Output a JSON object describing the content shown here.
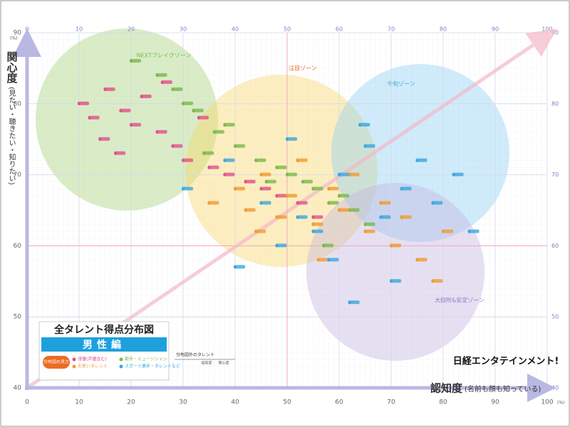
{
  "chart_data": {
    "type": "scatter",
    "title": "全タレント得点分布図",
    "subtitle": "男性編",
    "legend_title": "分布図の見方",
    "x_label": "認知度",
    "x_label_note": "(名前も顔も知っている)",
    "y_label": "関心度",
    "y_label_note": "(見たい・聴きたい・知りたい)",
    "unit": "(%)",
    "logo": "日経エンタテインメント!",
    "table_title": "分布図外のタレント",
    "table_columns": [
      "認知度",
      "関心度"
    ],
    "zones": [
      "NEXTブレイクゾーン",
      "注目ゾーン",
      "今旬ゾーン",
      "大御所&安定ゾーン"
    ],
    "xlim": [
      0,
      100
    ],
    "xticks": [
      0,
      10,
      20,
      30,
      40,
      50,
      60,
      70,
      80,
      90,
      100
    ],
    "ylim": [
      40,
      90
    ],
    "yticks": [
      40,
      50,
      60,
      70,
      80,
      90
    ],
    "grid": true,
    "series": [
      {
        "name": "俳優(声優含む)",
        "color": "#e0508a",
        "x": [
          10,
          12,
          15,
          18,
          20,
          22,
          25,
          14,
          17,
          28,
          30,
          35,
          38,
          42,
          45,
          48,
          52,
          55,
          33,
          26
        ],
        "values": [
          80,
          78,
          82,
          79,
          77,
          81,
          76,
          75,
          73,
          74,
          72,
          71,
          70,
          69,
          68,
          67,
          66,
          64,
          78,
          83
        ]
      },
      {
        "name": "歌手・ミュージシャン",
        "color": "#7ab84a",
        "x": [
          20,
          25,
          30,
          32,
          36,
          40,
          44,
          48,
          50,
          55,
          58,
          60,
          62,
          65,
          28,
          38,
          46,
          53,
          57,
          34
        ],
        "values": [
          86,
          84,
          80,
          79,
          76,
          74,
          72,
          71,
          70,
          68,
          66,
          67,
          65,
          63,
          82,
          77,
          69,
          69,
          60,
          73
        ]
      },
      {
        "name": "お笑いタレント",
        "color": "#f29a2e",
        "x": [
          35,
          40,
          42,
          45,
          48,
          50,
          52,
          55,
          58,
          60,
          62,
          65,
          68,
          70,
          72,
          75,
          78,
          80,
          44,
          56
        ],
        "values": [
          66,
          68,
          65,
          70,
          64,
          67,
          72,
          63,
          68,
          65,
          70,
          62,
          66,
          60,
          64,
          58,
          55,
          62,
          62,
          58
        ]
      },
      {
        "name": "スポーツ選手・タレントなど",
        "color": "#3aa6dd",
        "x": [
          30,
          38,
          45,
          50,
          55,
          60,
          65,
          68,
          72,
          75,
          78,
          82,
          48,
          58,
          64,
          70,
          85,
          40,
          52,
          62
        ],
        "values": [
          68,
          72,
          66,
          75,
          62,
          70,
          74,
          64,
          68,
          72,
          66,
          70,
          60,
          58,
          77,
          55,
          62,
          57,
          64,
          52
        ]
      }
    ]
  }
}
